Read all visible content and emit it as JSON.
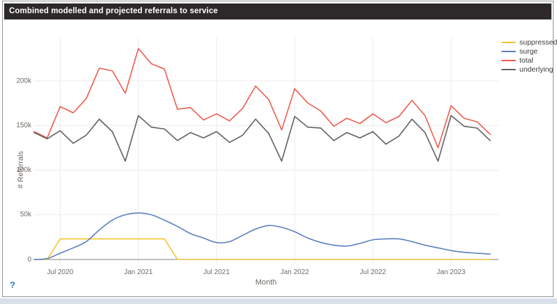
{
  "panel": {
    "title": "Combined modelled and projected referrals to service"
  },
  "help_icon": {
    "label": "?",
    "color": "#2b7dbf"
  },
  "chart_data": {
    "type": "line",
    "title": "Combined modelled and projected referrals to service",
    "xlabel": "Month",
    "ylabel": "# Referrals",
    "values_unit": "thousands of referrals",
    "ylim_k": [
      0,
      248
    ],
    "grid": true,
    "legend_position": "top-right",
    "x": [
      "May 2020",
      "Jun 2020",
      "Jul 2020",
      "Aug 2020",
      "Sep 2020",
      "Oct 2020",
      "Nov 2020",
      "Dec 2020",
      "Jan 2021",
      "Feb 2021",
      "Mar 2021",
      "Apr 2021",
      "May 2021",
      "Jun 2021",
      "Jul 2021",
      "Aug 2021",
      "Sep 2021",
      "Oct 2021",
      "Nov 2021",
      "Dec 2021",
      "Jan 2022",
      "Feb 2022",
      "Mar 2022",
      "Apr 2022",
      "May 2022",
      "Jun 2022",
      "Jul 2022",
      "Aug 2022",
      "Sep 2022",
      "Oct 2022",
      "Nov 2022",
      "Dec 2022",
      "Jan 2023",
      "Feb 2023",
      "Mar 2023",
      "Apr 2023"
    ],
    "x_tick_labels": [
      "Jul 2020",
      "Jan 2021",
      "Jul 2021",
      "Jan 2022",
      "Jul 2022",
      "Jan 2023"
    ],
    "x_tick_month_indices": [
      2,
      8,
      14,
      20,
      26,
      32
    ],
    "y_tick_values_k": [
      0,
      50,
      100,
      150,
      200
    ],
    "y_tick_labels": [
      "0",
      "50k",
      "100k",
      "150k",
      "200k"
    ],
    "series": [
      {
        "name": "suppressed",
        "color": "#f2c431",
        "smooth": false,
        "values_k": [
          0,
          0,
          23,
          23,
          23,
          23,
          23,
          23,
          23,
          23,
          23,
          0,
          0,
          0,
          0,
          0,
          0,
          0,
          0,
          0,
          0,
          0,
          0,
          0,
          0,
          0,
          0,
          0,
          0,
          0,
          0,
          0,
          0,
          0,
          0,
          0
        ]
      },
      {
        "name": "surge",
        "color": "#5b7fbf",
        "smooth": true,
        "values_k": [
          0,
          1,
          7,
          13,
          20,
          33,
          44,
          50,
          52,
          50,
          44,
          37,
          29,
          24,
          19,
          20,
          27,
          34,
          38,
          36,
          31,
          24,
          19,
          16,
          15,
          18,
          22,
          23,
          23,
          20,
          16,
          13,
          10,
          8,
          7,
          6
        ]
      },
      {
        "name": "total",
        "color": "#ef5b4d",
        "smooth": false,
        "values_k": [
          143,
          136,
          171,
          164,
          180,
          214,
          211,
          186,
          236,
          219,
          213,
          168,
          170,
          156,
          163,
          155,
          169,
          194,
          179,
          145,
          191,
          175,
          166,
          149,
          158,
          152,
          163,
          153,
          160,
          178,
          161,
          125,
          172,
          158,
          154,
          140
        ]
      },
      {
        "name": "underlying",
        "color": "#616161",
        "smooth": false,
        "values_k": [
          142,
          135,
          144,
          130,
          139,
          157,
          143,
          110,
          161,
          148,
          146,
          133,
          142,
          136,
          143,
          131,
          139,
          157,
          141,
          110,
          160,
          148,
          147,
          133,
          142,
          136,
          143,
          129,
          138,
          157,
          142,
          110,
          161,
          149,
          147,
          133
        ]
      }
    ],
    "style": {
      "grid_color": "#ebebeb",
      "zero_line_color": "#7d7d7d",
      "tick_color": "#6f6a64",
      "header_bg": "#2d292a",
      "header_text": "#ffffff"
    }
  }
}
